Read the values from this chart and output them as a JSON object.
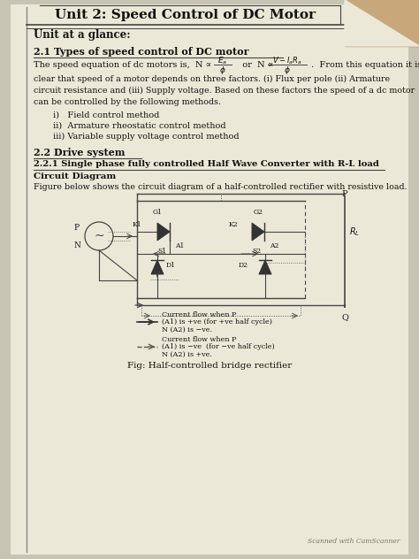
{
  "page_bg": "#e8e2d0",
  "border_color": "#555555",
  "text_color": "#222222",
  "title": "Unit 2: Speed Control of DC Motor",
  "unit_at_glance": "Unit at a glance:",
  "section21_title": "2.1 Types of speed control of DC motor",
  "section21_eq_prefix": "The speed equation of dc motors is,  N ∝  ",
  "section21_eq_suffix": ".  From this equation it is",
  "section21_body": "clear that speed of a motor depends on three factors. (i) Flux per pole (ii) Armature\ncircuit resistance and (iii) Supply voltage. Based on these factors the speed of a dc motor\ncan be controlled by the following methods.",
  "section21_items": [
    "i)   Field control method",
    "ii)  Armature rheostatic control method",
    "iii) Variable supply voltage control method"
  ],
  "section22_title": "2.2 Drive system",
  "section221_title": "2.2.1 Single phase fully controlled Half Wave Converter with R-L load",
  "circuit_diagram_label": "Circuit Diagram",
  "circuit_figure_text": "Figure below shows the circuit diagram of a half-controlled rectifier with resistive load.",
  "fig_caption": "Fig: Half-controlled bridge rectifier",
  "scanned_text": "Scanned with CamScanner",
  "corner_color": "#c8a87a"
}
